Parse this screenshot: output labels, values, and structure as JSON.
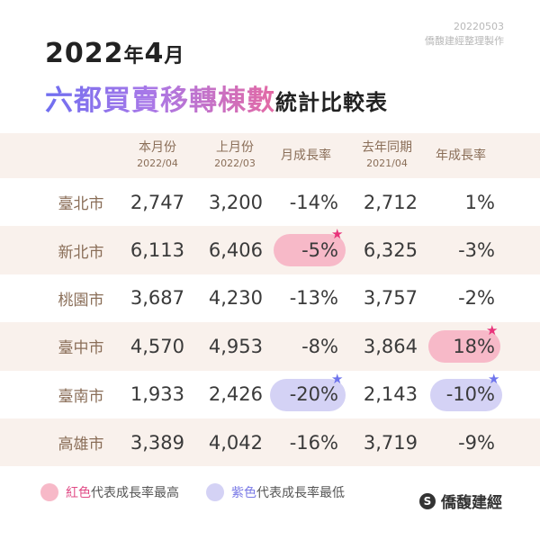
{
  "date_code": "20220503",
  "credit": "僑馥建經整理製作",
  "title_year": "2022",
  "title_year_unit": "年",
  "title_month": "4",
  "title_month_unit": "月",
  "title_main": "六都買賣移轉棟數",
  "title_tail": "統計比較表",
  "headers": [
    {
      "label": "本月份",
      "sub": "2022/04"
    },
    {
      "label": "上月份",
      "sub": "2022/03"
    },
    {
      "label": "月成長率",
      "sub": ""
    },
    {
      "label": "去年同期",
      "sub": "2021/04"
    },
    {
      "label": "年成長率",
      "sub": ""
    }
  ],
  "rows": [
    {
      "city": "臺北市",
      "current": "2,747",
      "previous": "3,200",
      "mom": "-14%",
      "last_year": "2,712",
      "yoy": "1%"
    },
    {
      "city": "新北市",
      "current": "6,113",
      "previous": "6,406",
      "mom": "-5%",
      "last_year": "6,325",
      "yoy": "-3%"
    },
    {
      "city": "桃園市",
      "current": "3,687",
      "previous": "4,230",
      "mom": "-13%",
      "last_year": "3,757",
      "yoy": "-2%"
    },
    {
      "city": "臺中市",
      "current": "4,570",
      "previous": "4,953",
      "mom": "-8%",
      "last_year": "3,864",
      "yoy": "18%"
    },
    {
      "city": "臺南市",
      "current": "1,933",
      "previous": "2,426",
      "mom": "-20%",
      "last_year": "2,143",
      "yoy": "-10%"
    },
    {
      "city": "高雄市",
      "current": "3,389",
      "previous": "4,042",
      "mom": "-16%",
      "last_year": "3,719",
      "yoy": "-9%"
    }
  ],
  "legend": {
    "red_label": "紅色",
    "red_text": "代表成長率最高",
    "purple_label": "紫色",
    "purple_text": "代表成長率最低"
  },
  "brand": "僑馥建經",
  "colors": {
    "highlight_high": "#f7b9c8",
    "highlight_low": "#d4d2f5",
    "star_high": "#e8337a",
    "star_low": "#6e74ec"
  }
}
